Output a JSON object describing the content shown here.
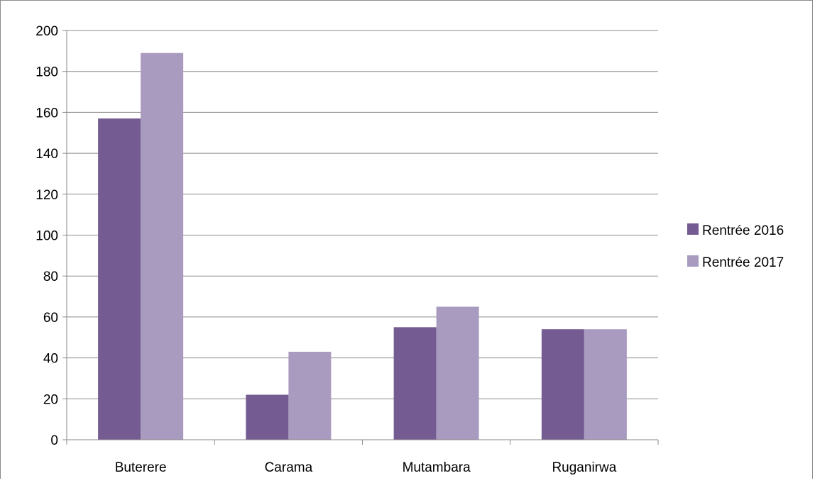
{
  "chart_data": {
    "type": "bar",
    "categories": [
      "Buterere",
      "Carama",
      "Mutambara",
      "Ruganirwa"
    ],
    "series": [
      {
        "name": "Rentrée 2016",
        "values": [
          157,
          22,
          55,
          54
        ],
        "color": "#745b91"
      },
      {
        "name": "Rentrée 2017",
        "values": [
          189,
          43,
          65,
          54
        ],
        "color": "#a99bbf"
      }
    ],
    "ylim": [
      0,
      200
    ],
    "yticks": [
      0,
      20,
      40,
      60,
      80,
      100,
      120,
      140,
      160,
      180,
      200
    ],
    "grid": true,
    "legend_position": "right",
    "title": "",
    "xlabel": "",
    "ylabel": ""
  }
}
